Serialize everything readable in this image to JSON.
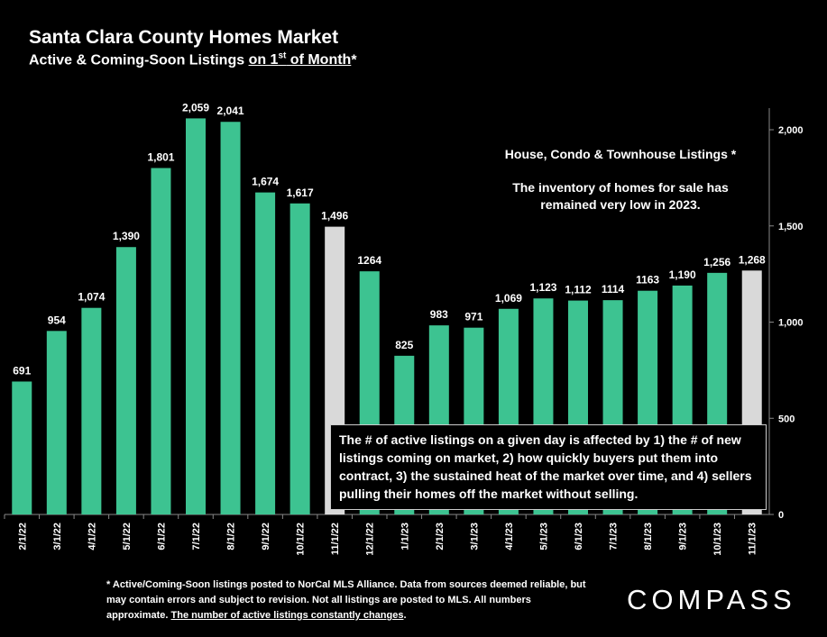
{
  "header": {
    "title": "Santa Clara County Homes Market",
    "subtitle_a": "Active & Coming-Soon Listings ",
    "subtitle_b": "on 1",
    "subtitle_sup": "st",
    "subtitle_c": " of Month",
    "subtitle_d": "*"
  },
  "notes": {
    "listing_types": "House, Condo & Townhouse Listings *",
    "inventory": "The inventory of homes for sale has remained very low in 2023."
  },
  "callout": "The # of active listings on a given day is affected by 1) the # of new listings coming on market, 2) how quickly buyers put them into contract, 3) the sustained heat of the market over time, and 4) sellers pulling their homes off the market without selling.",
  "footnote": {
    "text": "* Active/Coming-Soon listings posted to NorCal MLS Alliance.  Data from sources deemed reliable, but may contain errors and subject to revision.  Not all listings are posted to MLS. All numbers approximate. ",
    "underlined": "The number of active listings constantly changes",
    "end": "."
  },
  "logo": "COMPASS",
  "colors": {
    "bar": "#3dc391",
    "highlight_bar": "#d9d9d9",
    "background": "#000000",
    "text": "#ffffff"
  },
  "chart_data": {
    "type": "bar",
    "categories": [
      "2/1/22",
      "3/1/22",
      "4/1/22",
      "5/1/22",
      "6/1/22",
      "7/1/22",
      "8/1/22",
      "9/1/22",
      "10/1/22",
      "11/1/22",
      "12/1/22",
      "1/1/23",
      "2/1/23",
      "3/1/23",
      "4/1/23",
      "5/1/23",
      "6/1/23",
      "7/1/23",
      "8/1/23",
      "9/1/23",
      "10/1/23",
      "11/1/23"
    ],
    "values": [
      691,
      954,
      1074,
      1390,
      1801,
      2059,
      2041,
      1674,
      1617,
      1496,
      1264,
      825,
      983,
      971,
      1069,
      1123,
      1112,
      1114,
      1163,
      1190,
      1256,
      1268
    ],
    "labels": [
      "691",
      "954",
      "1,074",
      "1,390",
      "1,801",
      "2,059",
      "2,041",
      "1,674",
      "1,617",
      "1,496",
      "1264",
      "825",
      "983",
      "971",
      "1,069",
      "1,123",
      "1,112",
      "1114",
      "1163",
      "1,190",
      "1,256",
      "1,268"
    ],
    "highlighted": [
      "11/1/22",
      "11/1/23"
    ],
    "ylim": [
      0,
      2100
    ],
    "yticks": [
      0,
      500,
      1000,
      1500,
      2000
    ],
    "ytick_labels": [
      "0",
      "500",
      "1,000",
      "1,500",
      "2,000"
    ],
    "y_axis_position": "right",
    "grid": false,
    "legend": "none"
  }
}
